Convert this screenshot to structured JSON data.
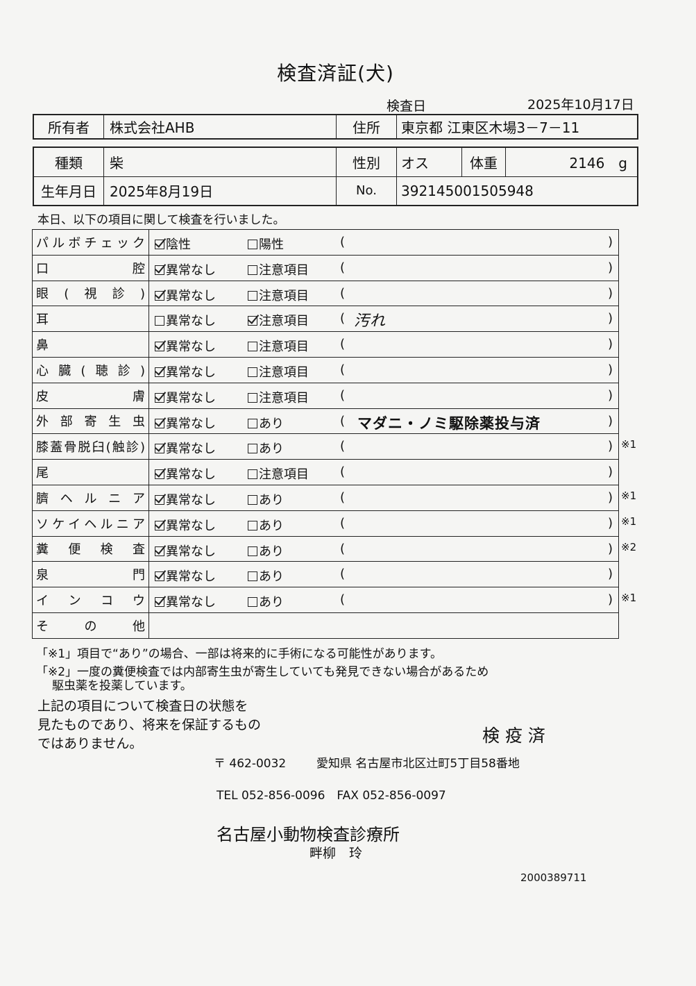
{
  "title": "検査済証(犬)",
  "exam_date_label": "検査日",
  "exam_date": "2025年10月17日",
  "owner": {
    "label": "所有者",
    "value": "株式会社AHB",
    "address_label": "住所",
    "address": "東京都 江東区木場3－7－11"
  },
  "animal": {
    "breed_label": "種類",
    "breed": "柴",
    "sex_label": "性別",
    "sex": "オス",
    "weight_label": "体重",
    "weight": "2146　g",
    "birth_label": "生年月日",
    "birth": "2025年8月19日",
    "no_label": "No.",
    "no": "392145001505948"
  },
  "intro": "本日、以下の項目に関して検査を行いました。",
  "rows": [
    {
      "label": "パルボチェック",
      "opt1": "陰性",
      "opt2": "陽性",
      "checked": 1,
      "note": "",
      "mark": ""
    },
    {
      "label": "口腔",
      "opt1": "異常なし",
      "opt2": "注意項目",
      "checked": 1,
      "note": "",
      "mark": ""
    },
    {
      "label": "眼(視診)",
      "opt1": "異常なし",
      "opt2": "注意項目",
      "checked": 1,
      "note": "",
      "mark": ""
    },
    {
      "label": "耳",
      "opt1": "異常なし",
      "opt2": "注意項目",
      "checked": 2,
      "note": "汚れ",
      "mark": ""
    },
    {
      "label": "鼻",
      "opt1": "異常なし",
      "opt2": "注意項目",
      "checked": 1,
      "note": "",
      "mark": ""
    },
    {
      "label": "心臓(聴診)",
      "opt1": "異常なし",
      "opt2": "注意項目",
      "checked": 1,
      "note": "",
      "mark": ""
    },
    {
      "label": "皮膚",
      "opt1": "異常なし",
      "opt2": "注意項目",
      "checked": 1,
      "note": "",
      "mark": ""
    },
    {
      "label": "外部寄生虫",
      "opt1": "異常なし",
      "opt2": "あり",
      "checked": 1,
      "note": "マダニ・ノミ駆除薬投与済",
      "mark": ""
    },
    {
      "label": "膝蓋骨脱臼(触診)",
      "opt1": "異常なし",
      "opt2": "あり",
      "checked": 1,
      "note": "",
      "mark": "※1"
    },
    {
      "label": "尾",
      "opt1": "異常なし",
      "opt2": "注意項目",
      "checked": 1,
      "note": "",
      "mark": ""
    },
    {
      "label": "臍ヘルニア",
      "opt1": "異常なし",
      "opt2": "あり",
      "checked": 1,
      "note": "",
      "mark": "※1"
    },
    {
      "label": "ソケイヘルニア",
      "opt1": "異常なし",
      "opt2": "あり",
      "checked": 1,
      "note": "",
      "mark": "※1"
    },
    {
      "label": "糞便検査",
      "opt1": "異常なし",
      "opt2": "あり",
      "checked": 1,
      "note": "",
      "mark": "※2"
    },
    {
      "label": "泉門",
      "opt1": "異常なし",
      "opt2": "あり",
      "checked": 1,
      "note": "",
      "mark": ""
    },
    {
      "label": "インコウ",
      "opt1": "異常なし",
      "opt2": "あり",
      "checked": 1,
      "note": "",
      "mark": "※1"
    }
  ],
  "other_label": "その他",
  "paren_open": "(",
  "paren_close": ")",
  "footnote1": "「※1」項目で“あり”の場合、一部は将来的に手術になる可能性があります。",
  "footnote2a": "「※2」一度の糞便検査では内部寄生虫が寄生していても発見できない場合があるため",
  "footnote2b": "駆虫薬を投薬しています。",
  "disclaimer": [
    "上記の項目について検査日の状態を",
    "見たものであり、将来を保証するもの",
    "ではありません。"
  ],
  "stamp": "検 疫 済",
  "clinic": {
    "postal": "〒 462-0032",
    "address": "愛知県 名古屋市北区辻町5丁目58番地",
    "tel": "TEL 052-856-0096　FAX 052-856-0097",
    "name": "名古屋小動物検査診療所",
    "person": "畔柳　玲"
  },
  "doc_number": "2000389711"
}
